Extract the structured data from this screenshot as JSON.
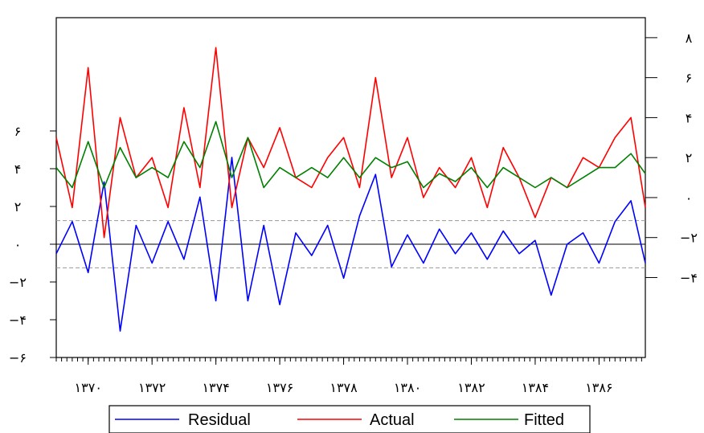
{
  "chart_data": {
    "type": "line",
    "title": "",
    "x_tick_labels": [
      "۱۳۷۰",
      "۱۳۷۲",
      "۱۳۷۴",
      "۱۳۷۶",
      "۱۳۷۸",
      "۱۳۸۰",
      "۱۳۸۲",
      "۱۳۸۴",
      "۱۳۸۶"
    ],
    "x_range": [
      1369.0,
      1387.45
    ],
    "left_axis": {
      "series": [
        "Residual"
      ],
      "ylim": [
        -6,
        12
      ],
      "ticks": [
        -6,
        -4,
        -2,
        0,
        2,
        4,
        6
      ],
      "tick_labels": [
        "−۶",
        "−۴",
        "−۲",
        "۰",
        "۲",
        "۴",
        "۶"
      ],
      "reference_lines": [
        -1.25,
        0,
        1.25
      ]
    },
    "right_axis": {
      "series": [
        "Actual",
        "Fitted"
      ],
      "ylim": [
        -8,
        9
      ],
      "ticks": [
        -4,
        -2,
        0,
        2,
        4,
        6,
        8
      ],
      "tick_labels": [
        "−۴",
        "−۲",
        "۰",
        "۲",
        "۴",
        "۶",
        "۸"
      ]
    },
    "legend_position": "bottom",
    "series": [
      {
        "name": "Residual",
        "color": "#0000ff",
        "axis": "left",
        "x": [
          1369.0,
          1369.5,
          1370.0,
          1370.5,
          1371.0,
          1371.5,
          1372.0,
          1372.5,
          1373.0,
          1373.5,
          1374.0,
          1374.5,
          1375.0,
          1375.5,
          1376.0,
          1376.5,
          1377.0,
          1377.5,
          1378.0,
          1378.5,
          1379.0,
          1379.5,
          1380.0,
          1380.5,
          1381.0,
          1381.5,
          1382.0,
          1382.5,
          1383.0,
          1383.5,
          1384.0,
          1384.5,
          1385.0,
          1385.5,
          1386.0,
          1386.5,
          1387.0,
          1387.45
        ],
        "values": [
          -0.5,
          1.2,
          -1.5,
          3.3,
          -4.6,
          1.0,
          -1.0,
          1.2,
          -0.8,
          2.5,
          -3.0,
          4.6,
          -3.0,
          1.0,
          -3.2,
          0.6,
          -0.6,
          1.0,
          -1.8,
          1.5,
          3.7,
          -1.2,
          0.5,
          -1.0,
          0.8,
          -0.5,
          0.6,
          -0.8,
          0.7,
          -0.5,
          0.2,
          -2.7,
          0.0,
          0.6,
          -1.0,
          1.2,
          2.3,
          -1.0
        ]
      },
      {
        "name": "Actual",
        "color": "#ff0000",
        "axis": "right",
        "x": [
          1369.0,
          1369.5,
          1370.0,
          1370.5,
          1371.0,
          1371.5,
          1372.0,
          1372.5,
          1373.0,
          1373.5,
          1374.0,
          1374.5,
          1375.0,
          1375.5,
          1376.0,
          1376.5,
          1377.0,
          1377.5,
          1378.0,
          1378.5,
          1379.0,
          1379.5,
          1380.0,
          1380.5,
          1381.0,
          1381.5,
          1382.0,
          1382.5,
          1383.0,
          1383.5,
          1384.0,
          1384.5,
          1385.0,
          1385.5,
          1386.0,
          1386.5,
          1387.0,
          1387.45
        ],
        "values": [
          3.0,
          -0.5,
          6.5,
          -2.0,
          4.0,
          1.0,
          2.0,
          -0.5,
          4.5,
          0.5,
          7.5,
          -0.5,
          3.0,
          1.5,
          3.5,
          1.0,
          0.5,
          2.0,
          3.0,
          0.5,
          6.0,
          1.0,
          3.0,
          0.0,
          1.5,
          0.5,
          2.0,
          -0.5,
          2.5,
          1.0,
          -1.0,
          1.0,
          0.5,
          2.0,
          1.5,
          3.0,
          4.0,
          -0.5
        ]
      },
      {
        "name": "Fitted",
        "color": "#008000",
        "axis": "right",
        "x": [
          1369.0,
          1369.5,
          1370.0,
          1370.5,
          1371.0,
          1371.5,
          1372.0,
          1372.5,
          1373.0,
          1373.5,
          1374.0,
          1374.5,
          1375.0,
          1375.5,
          1376.0,
          1376.5,
          1377.0,
          1377.5,
          1378.0,
          1378.5,
          1379.0,
          1379.5,
          1380.0,
          1380.5,
          1381.0,
          1381.5,
          1382.0,
          1382.5,
          1383.0,
          1383.5,
          1384.0,
          1384.5,
          1385.0,
          1385.5,
          1386.0,
          1386.5,
          1387.0,
          1387.45
        ],
        "values": [
          1.5,
          0.5,
          2.8,
          0.5,
          2.5,
          1.0,
          1.5,
          1.0,
          2.8,
          1.5,
          3.8,
          1.0,
          3.0,
          0.5,
          1.5,
          1.0,
          1.5,
          1.0,
          2.0,
          1.0,
          2.0,
          1.5,
          1.8,
          0.5,
          1.2,
          0.8,
          1.5,
          0.5,
          1.5,
          1.0,
          0.5,
          1.0,
          0.5,
          1.0,
          1.5,
          1.5,
          2.2,
          1.2
        ]
      }
    ]
  }
}
